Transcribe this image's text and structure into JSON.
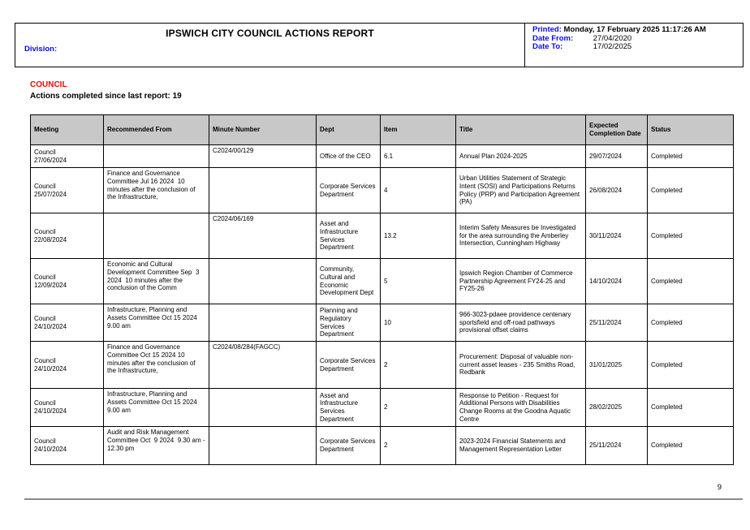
{
  "header": {
    "title": "IPSWICH CITY COUNCIL ACTIONS REPORT",
    "division_label": "Division:",
    "printed_label": "Printed:",
    "printed_value": "Monday, 17 February 2025   11:17:26 AM",
    "date_from_label": "Date From:",
    "date_from_value": "27/04/2020",
    "date_to_label": "Date To:",
    "date_to_value": "17/02/2025"
  },
  "section": {
    "name": "COUNCIL",
    "summary": "Actions completed since last report: 19"
  },
  "table": {
    "columns": [
      "Meeting",
      "Recommended From",
      "Minute Number",
      "Dept",
      "Item",
      "Title",
      "Expected Completion Date",
      "Status"
    ],
    "rows": [
      {
        "meeting": "Council\n27/06/2024",
        "recommended_from": "",
        "minute_number": "C2024/00/129",
        "dept": "Office of the CEO",
        "item": "6.1",
        "title": "Annual Plan 2024-2025",
        "expected_completion_date": "29/07/2024",
        "status": "Completed"
      },
      {
        "meeting": "Council\n25/07/2024",
        "recommended_from": "Finance and Governance Committee Jul 16 2024  10 minutes after the conclusion of the Infrastructure,",
        "minute_number": "",
        "dept": "Corporate Services Department",
        "item": "4",
        "title": "Urban Utilities Statement of Strategic Intent (SOSI) and Participations Returns Policy (PRP) and Participation Agreement (PA)",
        "expected_completion_date": "26/08/2024",
        "status": "Completed"
      },
      {
        "meeting": "Council\n22/08/2024",
        "recommended_from": "",
        "minute_number": "C2024/06/169",
        "dept": "Asset and Infrastructure Services Department",
        "item": "13.2",
        "title": "Interim Safety Measures be Investigated for the area surrounding the Amberley Intersection, Cunningham Highway",
        "expected_completion_date": "30/11/2024",
        "status": "Completed"
      },
      {
        "meeting": "Council\n12/09/2024",
        "recommended_from": "Economic and Cultural Development Committee Sep  3 2024  10 minutes after the conclusion of the Comm",
        "minute_number": "",
        "dept": "Community, Cultural and Economic Development Dept",
        "item": "5",
        "title": "Ipswich Region Chamber of Commerce Partnership Agreement FY24-25 and FY25-26",
        "expected_completion_date": "14/10/2024",
        "status": "Completed"
      },
      {
        "meeting": "Council\n24/10/2024",
        "recommended_from": "Infrastructure, Planning and Assets Committee Oct 15 2024  9.00 am",
        "minute_number": "",
        "dept": "Planning and Regulatory Services Department",
        "item": "10",
        "title": "966-3023-pdaee providence centenary sportsfield and off-road pathways provisional offset claims",
        "expected_completion_date": "25/11/2024",
        "status": "Completed"
      },
      {
        "meeting": "Council\n24/10/2024",
        "recommended_from": "Finance and Governance Committee Oct 15 2024 10 minutes after the conclusion of the Infrastructure,",
        "minute_number": "C2024/08/284(FAGCC)",
        "dept": "Corporate Services Department",
        "item": "2",
        "title": "Procurement: Disposal of valuable non-current asset leases - 235 Smiths Road, Redbank",
        "expected_completion_date": "31/01/2025",
        "status": "Completed"
      },
      {
        "meeting": "Council\n24/10/2024",
        "recommended_from": "Infrastructure, Planning and Assets Committee Oct 15 2024  9.00 am",
        "minute_number": "",
        "dept": "Asset and Infrastructure Services Department",
        "item": "2",
        "title": "Response to Petition - Request for Additional Persons with Disabilities Change Rooms at the Goodna Aquatic Centre",
        "expected_completion_date": "28/02/2025",
        "status": "Completed"
      },
      {
        "meeting": "Council\n24/10/2024",
        "recommended_from": "Audit and Risk Management Committee Oct  9 2024  9.30 am - 12.30 pm",
        "minute_number": "",
        "dept": "Corporate Services Department",
        "item": "2",
        "title": "2023-2024 Financial Statements and Management Representation Letter",
        "expected_completion_date": "25/11/2024",
        "status": "Completed"
      }
    ]
  },
  "footer": {
    "page_number": "9"
  },
  "colors": {
    "label_blue": "#0A0AEE",
    "section_red": "#FF0000",
    "table_header_gray": "#C8C8C8"
  }
}
